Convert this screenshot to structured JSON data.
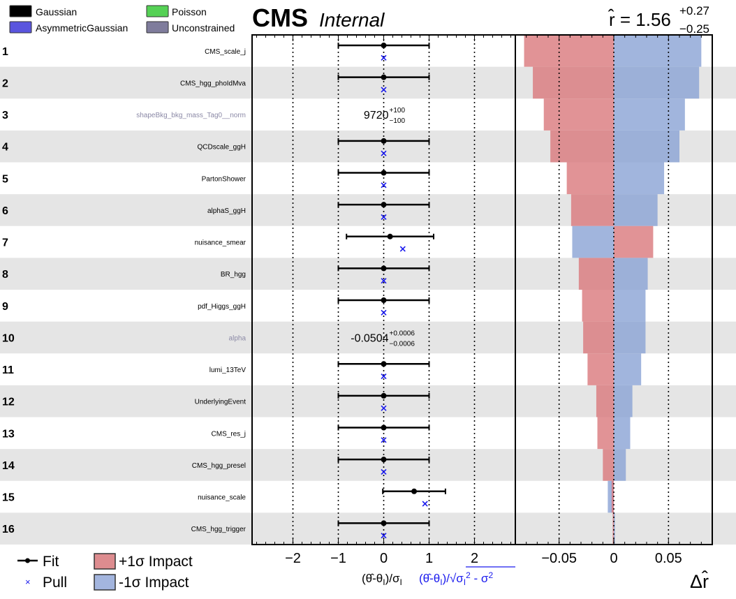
{
  "header": {
    "cms": "CMS",
    "status": "Internal",
    "r_label": "r̂ = 1.56",
    "r_value": 1.56,
    "r_up": "+0.27",
    "r_down": "−0.25"
  },
  "type_legend": [
    {
      "label": "Gaussian",
      "color": "#000000"
    },
    {
      "label": "Poisson",
      "color": "#55d155"
    },
    {
      "label": "AsymmetricGaussian",
      "color": "#5a55de"
    },
    {
      "label": "Unconstrained",
      "color": "#7f7c9c"
    }
  ],
  "bottom_legend": {
    "fit": "Fit",
    "pull": "Pull",
    "plus_impact": "+1σ Impact",
    "minus_impact": "-1σ Impact"
  },
  "colors": {
    "plus_impact": "#d9787c",
    "minus_impact": "#8aa2d4",
    "pull": "#1a1aee",
    "row_shade": "#e5e5e5",
    "unconstrained_text": "#8b89a6"
  },
  "chart_data": [
    {
      "type": "scatter",
      "title": "Pulls",
      "xlabel": "(θ̂-θI)/σI",
      "xlabel_pull": "(θ̂-θI)/√(σI² - σ²)",
      "xlim": [
        -2.9,
        2.9
      ],
      "xticks": [
        -2,
        -1,
        0,
        1,
        2
      ],
      "xtick_labels": [
        "−2",
        "−1",
        "0",
        "1",
        "2"
      ],
      "gridlines_at": [
        -2,
        -1,
        0,
        1,
        2
      ],
      "categories": [
        "CMS_scale_j",
        "CMS_hgg_phoIdMva",
        "shapeBkg_bkg_mass_Tag0__norm",
        "QCDscale_ggH",
        "PartonShower",
        "alphaS_ggH",
        "nuisance_smear",
        "BR_hgg",
        "pdf_Higgs_ggH",
        "alpha",
        "lumi_13TeV",
        "UnderlyingEvent",
        "CMS_res_j",
        "CMS_hgg_presel",
        "nuisance_scale",
        "CMS_hgg_trigger"
      ],
      "series": [
        {
          "name": "Fit",
          "values": [
            0,
            0,
            null,
            0,
            0,
            0,
            0.14,
            0,
            0,
            null,
            0,
            0,
            0,
            0,
            0.67,
            0
          ],
          "err_lo": [
            -1,
            -1,
            null,
            -1,
            -1,
            -1,
            -0.82,
            -1,
            -1,
            null,
            -1,
            -1,
            -1,
            -1,
            -0.02,
            -1
          ],
          "err_hi": [
            1,
            1,
            null,
            1,
            1,
            1,
            1.1,
            1,
            1,
            null,
            1,
            1,
            1,
            1,
            1.36,
            1
          ]
        },
        {
          "name": "Pull",
          "values": [
            0,
            0,
            null,
            0,
            0,
            0,
            0.42,
            0,
            0,
            null,
            0,
            0,
            0,
            0,
            0.91,
            0
          ]
        }
      ],
      "text_values": {
        "3": {
          "central": "9720",
          "up": "+100",
          "down": "−100"
        },
        "10": {
          "central": "-0.0504",
          "up": "+0.0006",
          "down": "−0.0006"
        }
      }
    },
    {
      "type": "bar",
      "title": "Impacts",
      "xlabel": "Δr̂",
      "xlim": [
        -0.09,
        0.09
      ],
      "xticks": [
        -0.05,
        0,
        0.05
      ],
      "xtick_labels": [
        "−0.05",
        "0",
        "0.05"
      ],
      "categories": [
        "CMS_scale_j",
        "CMS_hgg_phoIdMva",
        "shapeBkg_bkg_mass_Tag0__norm",
        "QCDscale_ggH",
        "PartonShower",
        "alphaS_ggH",
        "nuisance_smear",
        "BR_hgg",
        "pdf_Higgs_ggH",
        "alpha",
        "lumi_13TeV",
        "UnderlyingEvent",
        "CMS_res_j",
        "CMS_hgg_presel",
        "nuisance_scale",
        "CMS_hgg_trigger"
      ],
      "series": [
        {
          "name": "+1σ Impact",
          "values": [
            -0.082,
            -0.074,
            -0.064,
            -0.058,
            -0.043,
            -0.039,
            0.036,
            -0.032,
            -0.029,
            -0.028,
            -0.024,
            -0.016,
            -0.015,
            -0.01,
            -0.002,
            -0.001
          ]
        },
        {
          "name": "-1σ Impact",
          "values": [
            0.08,
            0.078,
            0.065,
            0.06,
            0.046,
            0.04,
            -0.038,
            0.031,
            0.029,
            0.029,
            0.025,
            0.017,
            0.015,
            0.011,
            -0.0055,
            0.001
          ]
        }
      ]
    }
  ],
  "rows": [
    {
      "rank": "1",
      "name": "CMS_scale_j",
      "unconstrained": false
    },
    {
      "rank": "2",
      "name": "CMS_hgg_phoIdMva",
      "unconstrained": false
    },
    {
      "rank": "3",
      "name": "shapeBkg_bkg_mass_Tag0__norm",
      "unconstrained": true
    },
    {
      "rank": "4",
      "name": "QCDscale_ggH",
      "unconstrained": false
    },
    {
      "rank": "5",
      "name": "PartonShower",
      "unconstrained": false
    },
    {
      "rank": "6",
      "name": "alphaS_ggH",
      "unconstrained": false
    },
    {
      "rank": "7",
      "name": "nuisance_smear",
      "unconstrained": false
    },
    {
      "rank": "8",
      "name": "BR_hgg",
      "unconstrained": false
    },
    {
      "rank": "9",
      "name": "pdf_Higgs_ggH",
      "unconstrained": false
    },
    {
      "rank": "10",
      "name": "alpha",
      "unconstrained": true
    },
    {
      "rank": "11",
      "name": "lumi_13TeV",
      "unconstrained": false
    },
    {
      "rank": "12",
      "name": "UnderlyingEvent",
      "unconstrained": false
    },
    {
      "rank": "13",
      "name": "CMS_res_j",
      "unconstrained": false
    },
    {
      "rank": "14",
      "name": "CMS_hgg_presel",
      "unconstrained": false
    },
    {
      "rank": "15",
      "name": "nuisance_scale",
      "unconstrained": false
    },
    {
      "rank": "16",
      "name": "CMS_hgg_trigger",
      "unconstrained": false
    }
  ]
}
